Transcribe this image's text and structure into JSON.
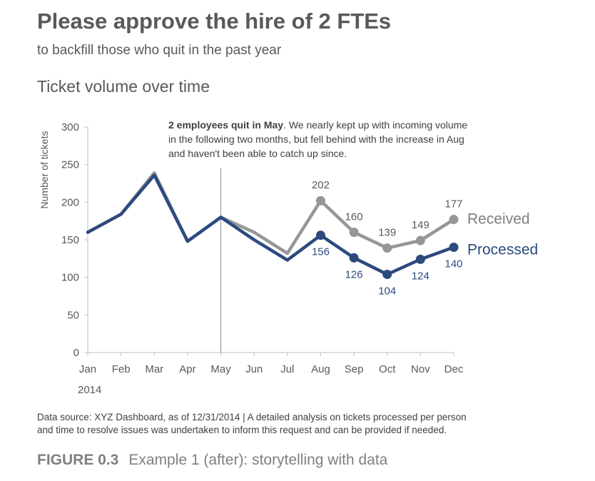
{
  "header": {
    "title": "Please approve the hire of 2 FTEs",
    "subtitle": "to backfill those who quit in the past year"
  },
  "chart_data": {
    "type": "line",
    "title": "Ticket volume over time",
    "ylabel": "Number of tickets",
    "year_label": "2014",
    "categories": [
      "Jan",
      "Feb",
      "Mar",
      "Apr",
      "May",
      "Jun",
      "Jul",
      "Aug",
      "Sep",
      "Oct",
      "Nov",
      "Dec"
    ],
    "ylim": [
      0,
      300
    ],
    "yticks": [
      0,
      50,
      100,
      150,
      200,
      250,
      300
    ],
    "grid": false,
    "series": [
      {
        "name": "Received",
        "color": "#969696",
        "values": [
          160,
          184,
          239,
          148,
          180,
          160,
          132,
          202,
          160,
          139,
          149,
          177
        ],
        "labeled_from": 7
      },
      {
        "name": "Processed",
        "color": "#2c4a7e",
        "values": [
          160,
          184,
          236,
          148,
          180,
          150,
          123,
          156,
          126,
          104,
          124,
          140
        ],
        "labeled_from": 7
      }
    ],
    "annotation": {
      "at": "May",
      "bold": "2 employees quit in May",
      "lines": [
        ". We nearly kept up with incoming volume",
        "in the following two months, but fell behind with the increase in Aug",
        "and haven't been able to catch up since."
      ]
    }
  },
  "footer": {
    "source_line1": "Data source: XYZ Dashboard, as of 12/31/2014  |  A detailed analysis on tickets processed per person",
    "source_line2": "and time to resolve issues was undertaken to inform this request and can be provided if needed.",
    "figure_number": "FIGURE 0.3",
    "figure_caption": "Example 1 (after): storytelling with data"
  }
}
